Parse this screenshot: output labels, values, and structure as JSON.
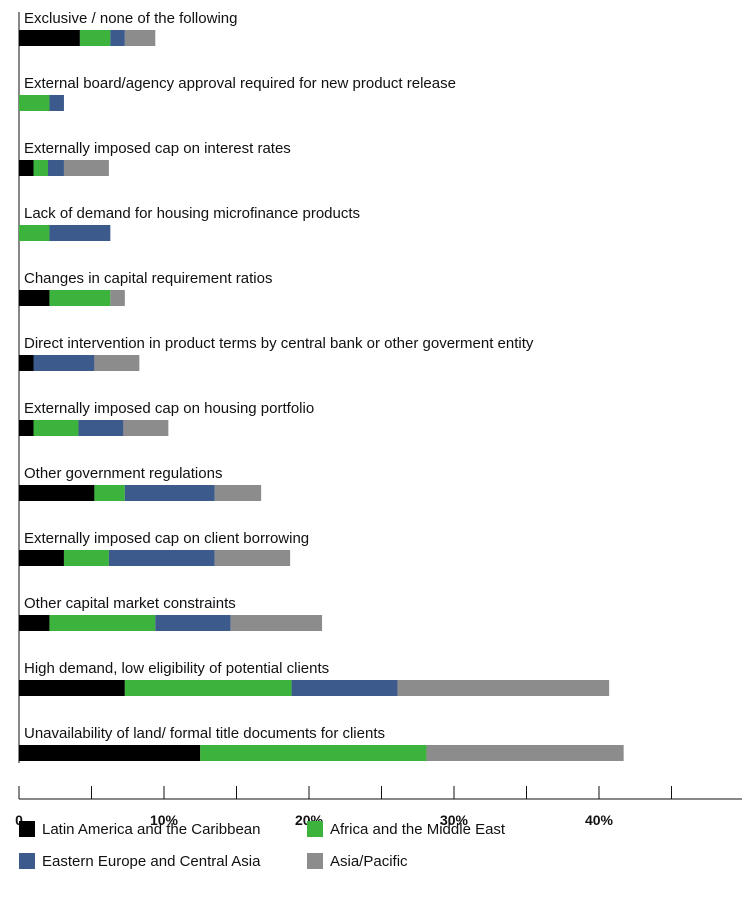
{
  "chart_data": {
    "type": "bar",
    "orientation": "horizontal",
    "stacked": true,
    "categories": [
      "Exclusive / none of the following",
      "External board/agency approval required for new product release",
      "Externally imposed cap on interest rates",
      "Lack of demand for housing microfinance products",
      "Changes in capital requirement ratios",
      "Direct intervention in product terms by central bank or other goverment entity",
      "Externally imposed cap on housing portfolio",
      "Other government regulations",
      "Externally imposed cap on client borrowing",
      "Other capital market constraints",
      "High demand, low eligibility of potential clients",
      "Unavailability of land/ formal title documents for clients"
    ],
    "series": [
      {
        "name": "Latin America and the Caribbean",
        "color": "#000000",
        "values": [
          4.2,
          0,
          1.0,
          0,
          2.1,
          1.0,
          1.0,
          5.2,
          3.1,
          2.1,
          7.3,
          12.5
        ]
      },
      {
        "name": "Africa and the Middle East",
        "color": "#3cb33c",
        "values": [
          2.1,
          2.1,
          1.0,
          2.1,
          4.2,
          0,
          3.1,
          2.1,
          3.1,
          7.3,
          11.5,
          15.6
        ]
      },
      {
        "name": "Eastern Europe and Central Asia",
        "color": "#3d5a8c",
        "values": [
          1.0,
          1.0,
          1.1,
          4.2,
          0,
          4.2,
          3.1,
          6.2,
          7.3,
          5.2,
          7.3,
          0
        ]
      },
      {
        "name": "Asia/Pacific",
        "color": "#8c8c8c",
        "values": [
          2.1,
          0,
          3.1,
          0,
          1.0,
          3.1,
          3.1,
          3.2,
          5.2,
          6.3,
          14.6,
          13.6
        ]
      }
    ],
    "x_ticks": [
      0,
      10,
      20,
      30,
      40
    ],
    "x_tick_labels": [
      "0",
      "10%",
      "20%",
      "30%",
      "40%"
    ],
    "xlim": [
      0,
      50
    ],
    "grid": false,
    "legend_position": "bottom"
  }
}
